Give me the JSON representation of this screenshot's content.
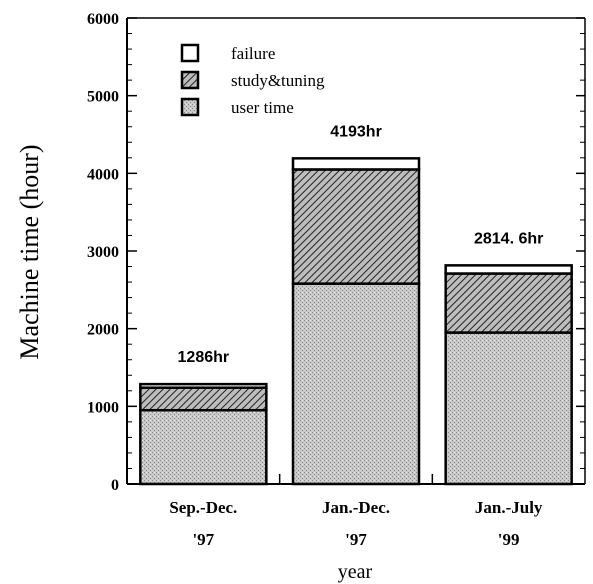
{
  "chart_data": {
    "type": "bar",
    "stacked": true,
    "title": "",
    "xlabel": "year",
    "ylabel": "Machine time (hour)",
    "ylim": [
      0,
      6000
    ],
    "y_ticks": [
      0,
      1000,
      2000,
      3000,
      4000,
      5000,
      6000
    ],
    "grid": false,
    "legend_position": "top-left",
    "categories": [
      {
        "line1": "Sep.-Dec.",
        "line2": "'97"
      },
      {
        "line1": "Jan.-Dec.",
        "line2": "'97"
      },
      {
        "line1": "Jan.-July",
        "line2": "'99"
      }
    ],
    "series": [
      {
        "name": "user time",
        "values": [
          950,
          2580,
          1950
        ],
        "pattern": "dots"
      },
      {
        "name": "study&tuning",
        "values": [
          290,
          1470,
          760
        ],
        "pattern": "hatch"
      },
      {
        "name": "failure",
        "values": [
          46,
          143,
          105
        ],
        "pattern": "white"
      }
    ],
    "totals_labels": [
      "1286hr",
      "4193hr",
      "2814. 6hr"
    ],
    "totals": [
      1286,
      4193,
      2814.6
    ],
    "legend_order": [
      "failure",
      "study&tuning",
      "user time"
    ]
  }
}
